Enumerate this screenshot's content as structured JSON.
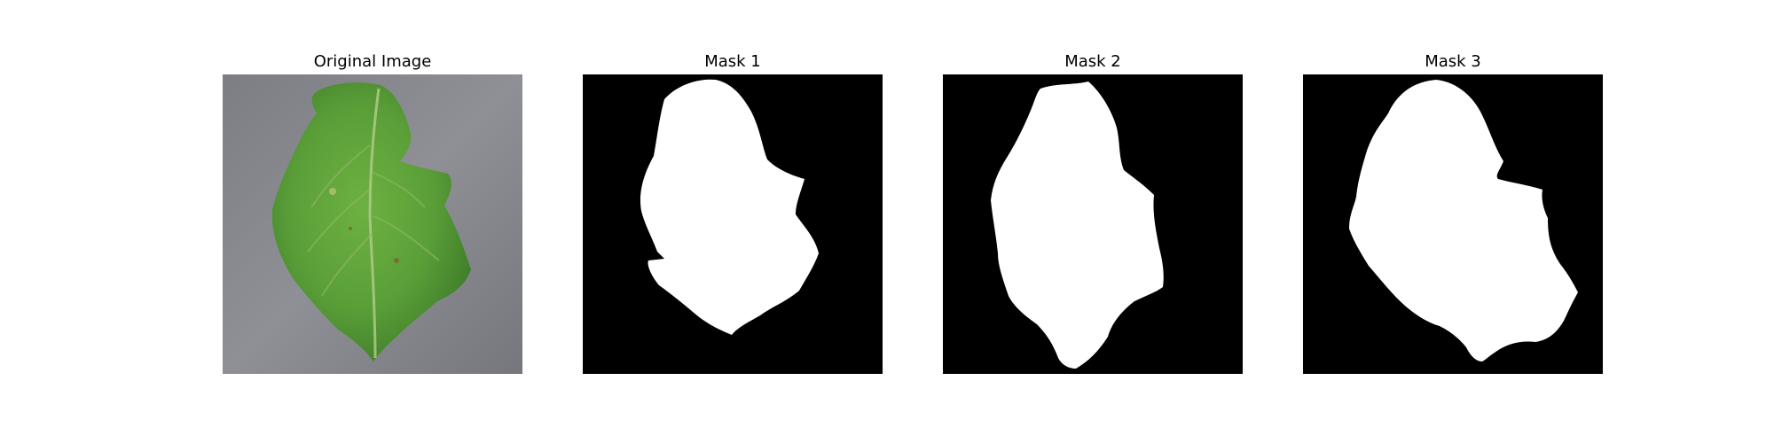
{
  "panels": [
    {
      "title": "Original Image",
      "kind": "photo"
    },
    {
      "title": "Mask 1",
      "kind": "mask"
    },
    {
      "title": "Mask 2",
      "kind": "mask"
    },
    {
      "title": "Mask 3",
      "kind": "mask"
    }
  ],
  "colors": {
    "background": "#ffffff",
    "mask_background": "#000000",
    "mask_foreground": "#ffffff",
    "photo_background": "#808286",
    "leaf_green": "#5ea43a",
    "leaf_dark": "#3f7e2a",
    "leaf_light": "#a8c66a"
  }
}
